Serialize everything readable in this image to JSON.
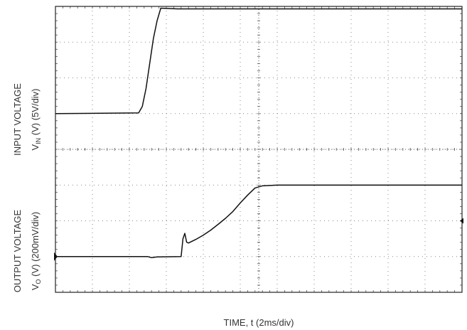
{
  "chart_data": {
    "type": "line",
    "xlabel": "TIME, t (2ms/div)",
    "x_divisions": 11,
    "y_divisions": 8,
    "series": [
      {
        "label_top": "INPUT VOLTAGE",
        "label_bottom_prefix": "V",
        "label_bottom_sub": "IN",
        "label_bottom_suffix": " (V) (5V/div)",
        "x": [
          0,
          2.25,
          2.35,
          2.45,
          2.55,
          2.65,
          2.75,
          2.85,
          3.3,
          11
        ],
        "y": [
          5,
          5.02,
          5.2,
          5.7,
          6.4,
          7.1,
          7.6,
          7.95,
          7.93,
          7.93
        ]
      },
      {
        "label_top": "OUTPUT VOLTAGE",
        "label_bottom_prefix": "V",
        "label_bottom_sub": "O",
        "label_bottom_suffix": " (V) (200mV/div)",
        "x": [
          0,
          2.5,
          2.6,
          2.75,
          3.4,
          3.45,
          3.5,
          3.55,
          3.6,
          3.8,
          4.0,
          4.2,
          4.4,
          4.6,
          4.8,
          5.0,
          5.2,
          5.4,
          5.6,
          6.0,
          11
        ],
        "y": [
          1.0,
          1.0,
          0.97,
          0.99,
          1.0,
          1.5,
          1.65,
          1.4,
          1.38,
          1.48,
          1.6,
          1.74,
          1.9,
          2.07,
          2.26,
          2.5,
          2.72,
          2.92,
          2.98,
          3.0,
          3.0
        ]
      }
    ],
    "markers": [
      {
        "shape": "triangle-right",
        "x": 0,
        "y": 1.0
      },
      {
        "shape": "triangle-left",
        "x": 11,
        "y": 2.0
      }
    ],
    "grid": true,
    "line_color": "#111111",
    "grid_color": "#888888",
    "frame_color": "#222222"
  }
}
